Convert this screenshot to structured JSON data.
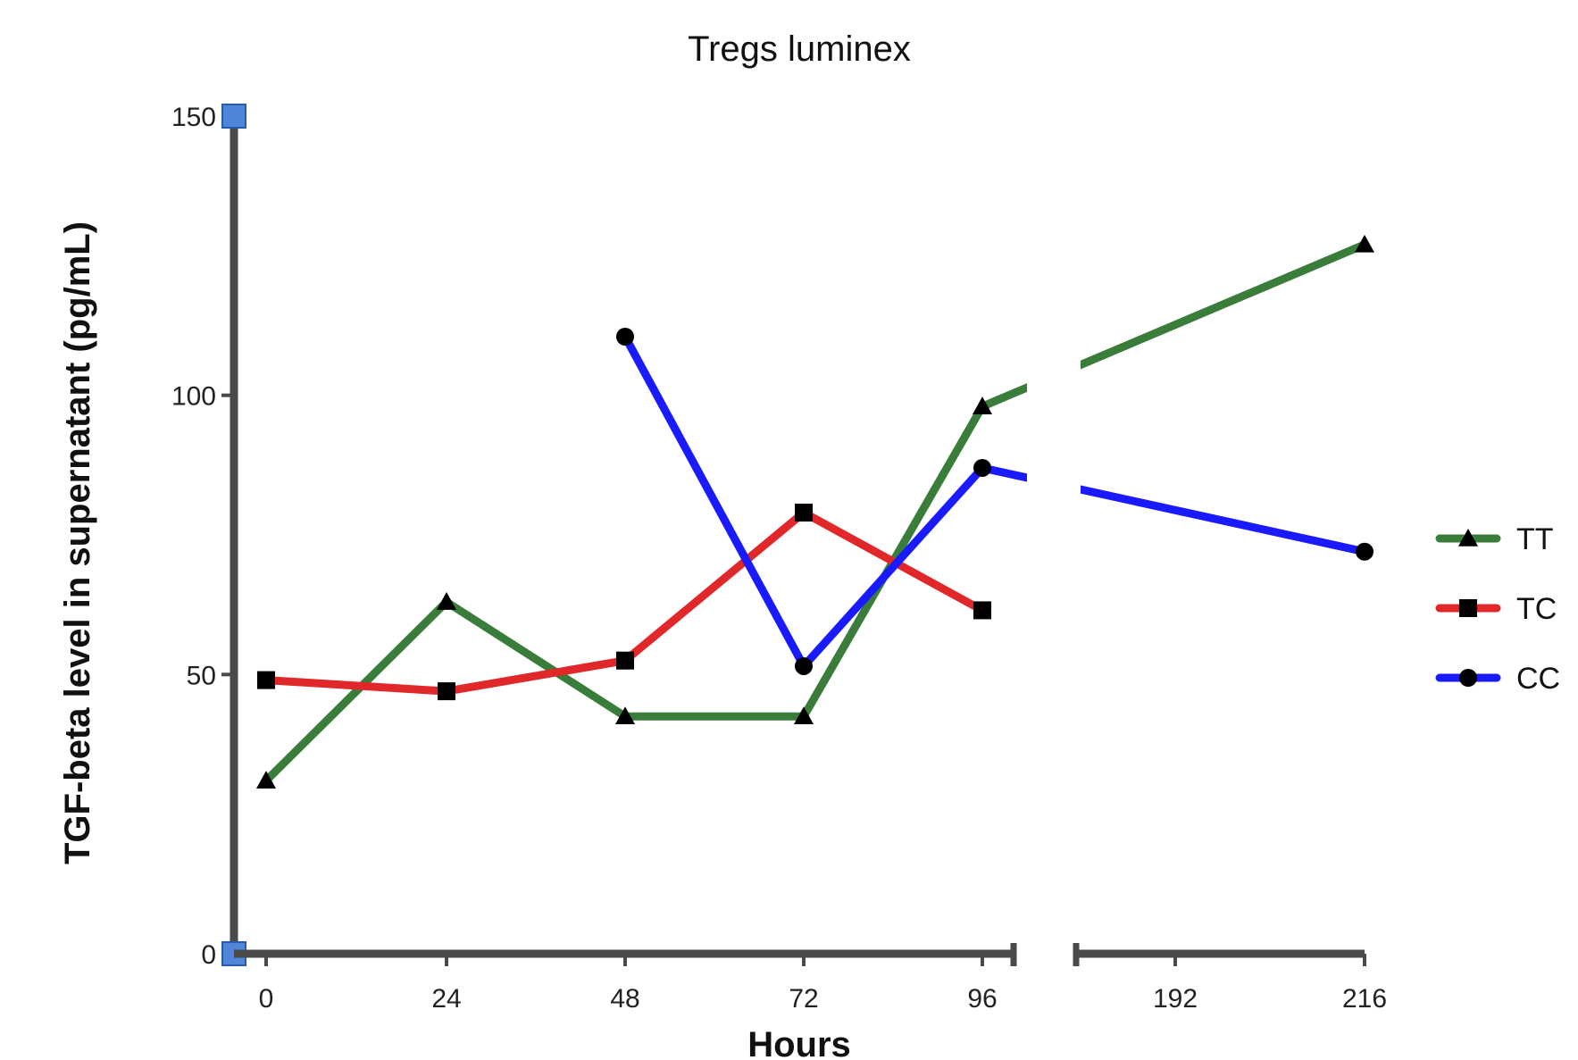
{
  "chart_data": {
    "type": "line",
    "title": "Tregs luminex",
    "xlabel": "Hours",
    "ylabel": "TGF-beta level in supernatant (pg/mL)",
    "x_categories": [
      "0",
      "24",
      "48",
      "72",
      "96",
      "192",
      "216"
    ],
    "x_axis_break": "between 96 and 192",
    "ylim": [
      0,
      150
    ],
    "yticks": [
      "0",
      "50",
      "100",
      "150"
    ],
    "grid": false,
    "legend_position": "right",
    "series": [
      {
        "name": "TT",
        "color": "#3a7d3a",
        "marker": "triangle",
        "x": [
          "0",
          "24",
          "48",
          "72",
          "96",
          "216"
        ],
        "y": [
          31,
          63,
          42.5,
          42.5,
          98,
          127
        ]
      },
      {
        "name": "TC",
        "color": "#e0282a",
        "marker": "square",
        "x": [
          "0",
          "24",
          "48",
          "72",
          "96"
        ],
        "y": [
          49,
          47,
          52.5,
          79,
          61.5
        ]
      },
      {
        "name": "CC",
        "color": "#1a1aff",
        "marker": "circle",
        "x": [
          "48",
          "72",
          "96",
          "216"
        ],
        "y": [
          110.5,
          51.5,
          87,
          72
        ]
      }
    ]
  }
}
